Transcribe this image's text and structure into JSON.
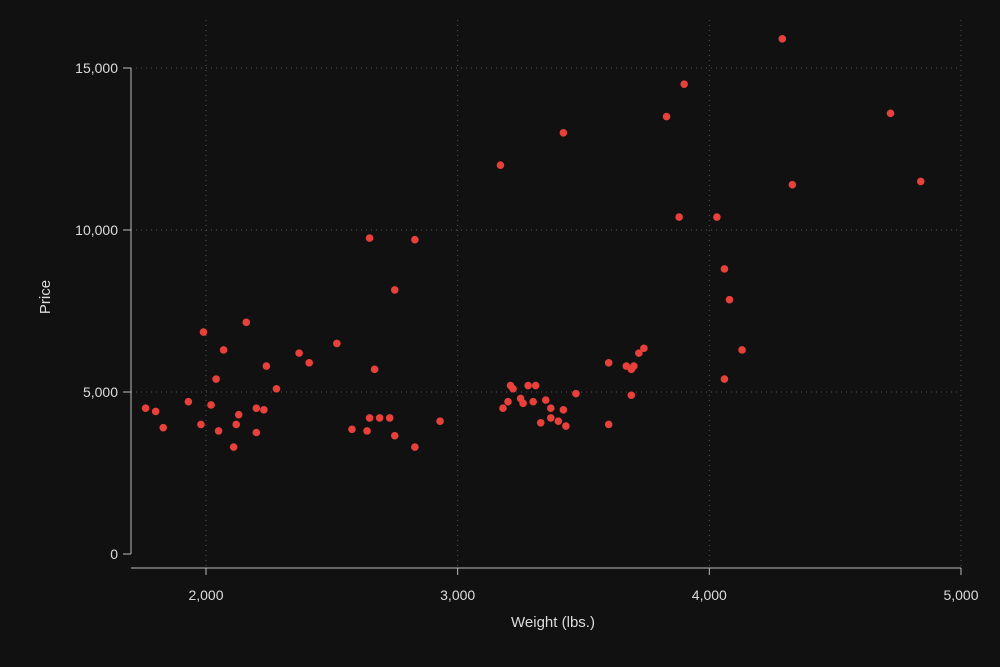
{
  "chart_data": {
    "type": "scatter",
    "title": "",
    "xlabel": "Weight (lbs.)",
    "ylabel": "Price",
    "xlim": [
      1760,
      5000
    ],
    "ylim": [
      0,
      16000
    ],
    "xticks": [
      2000,
      3000,
      4000,
      5000
    ],
    "xtick_labels": [
      "2,000",
      "3,000",
      "4,000",
      "5,000"
    ],
    "yticks": [
      0,
      5000,
      10000,
      15000
    ],
    "ytick_labels": [
      "0",
      "5,000",
      "10,000",
      "15,000"
    ],
    "grid": true,
    "legend": "none",
    "colors": {
      "background": "#111111",
      "marker": "#e8403a",
      "axis": "#bbbbbb",
      "grid": "#555555"
    },
    "series": [
      {
        "points": [
          [
            1760,
            4500
          ],
          [
            1800,
            4400
          ],
          [
            1830,
            3900
          ],
          [
            1930,
            4700
          ],
          [
            1980,
            4000
          ],
          [
            1990,
            6850
          ],
          [
            2020,
            4600
          ],
          [
            2040,
            5400
          ],
          [
            2050,
            3800
          ],
          [
            2070,
            6300
          ],
          [
            2110,
            3300
          ],
          [
            2120,
            4000
          ],
          [
            2130,
            4300
          ],
          [
            2160,
            7150
          ],
          [
            2200,
            4500
          ],
          [
            2200,
            3750
          ],
          [
            2230,
            4450
          ],
          [
            2240,
            5800
          ],
          [
            2280,
            5100
          ],
          [
            2370,
            6200
          ],
          [
            2410,
            5900
          ],
          [
            2520,
            6500
          ],
          [
            2580,
            3850
          ],
          [
            2640,
            3800
          ],
          [
            2650,
            4200
          ],
          [
            2650,
            9750
          ],
          [
            2670,
            5700
          ],
          [
            2690,
            4200
          ],
          [
            2730,
            4200
          ],
          [
            2750,
            3650
          ],
          [
            2750,
            8150
          ],
          [
            2830,
            3300
          ],
          [
            2830,
            9700
          ],
          [
            2930,
            4100
          ],
          [
            3170,
            12000
          ],
          [
            3180,
            4500
          ],
          [
            3200,
            4700
          ],
          [
            3210,
            5200
          ],
          [
            3220,
            5100
          ],
          [
            3250,
            4800
          ],
          [
            3260,
            4650
          ],
          [
            3280,
            5200
          ],
          [
            3300,
            4700
          ],
          [
            3310,
            5200
          ],
          [
            3330,
            4050
          ],
          [
            3350,
            4750
          ],
          [
            3370,
            4200
          ],
          [
            3370,
            4500
          ],
          [
            3400,
            4100
          ],
          [
            3420,
            4450
          ],
          [
            3420,
            13000
          ],
          [
            3430,
            3950
          ],
          [
            3470,
            4950
          ],
          [
            3600,
            4000
          ],
          [
            3600,
            5900
          ],
          [
            3670,
            5800
          ],
          [
            3690,
            4900
          ],
          [
            3690,
            5700
          ],
          [
            3700,
            5800
          ],
          [
            3720,
            6200
          ],
          [
            3740,
            6350
          ],
          [
            3830,
            13500
          ],
          [
            3880,
            10400
          ],
          [
            3900,
            14500
          ],
          [
            4030,
            10400
          ],
          [
            4060,
            5400
          ],
          [
            4060,
            8800
          ],
          [
            4080,
            7850
          ],
          [
            4130,
            6300
          ],
          [
            4290,
            15900
          ],
          [
            4330,
            11400
          ],
          [
            4720,
            13600
          ],
          [
            4840,
            11500
          ]
        ]
      }
    ]
  }
}
